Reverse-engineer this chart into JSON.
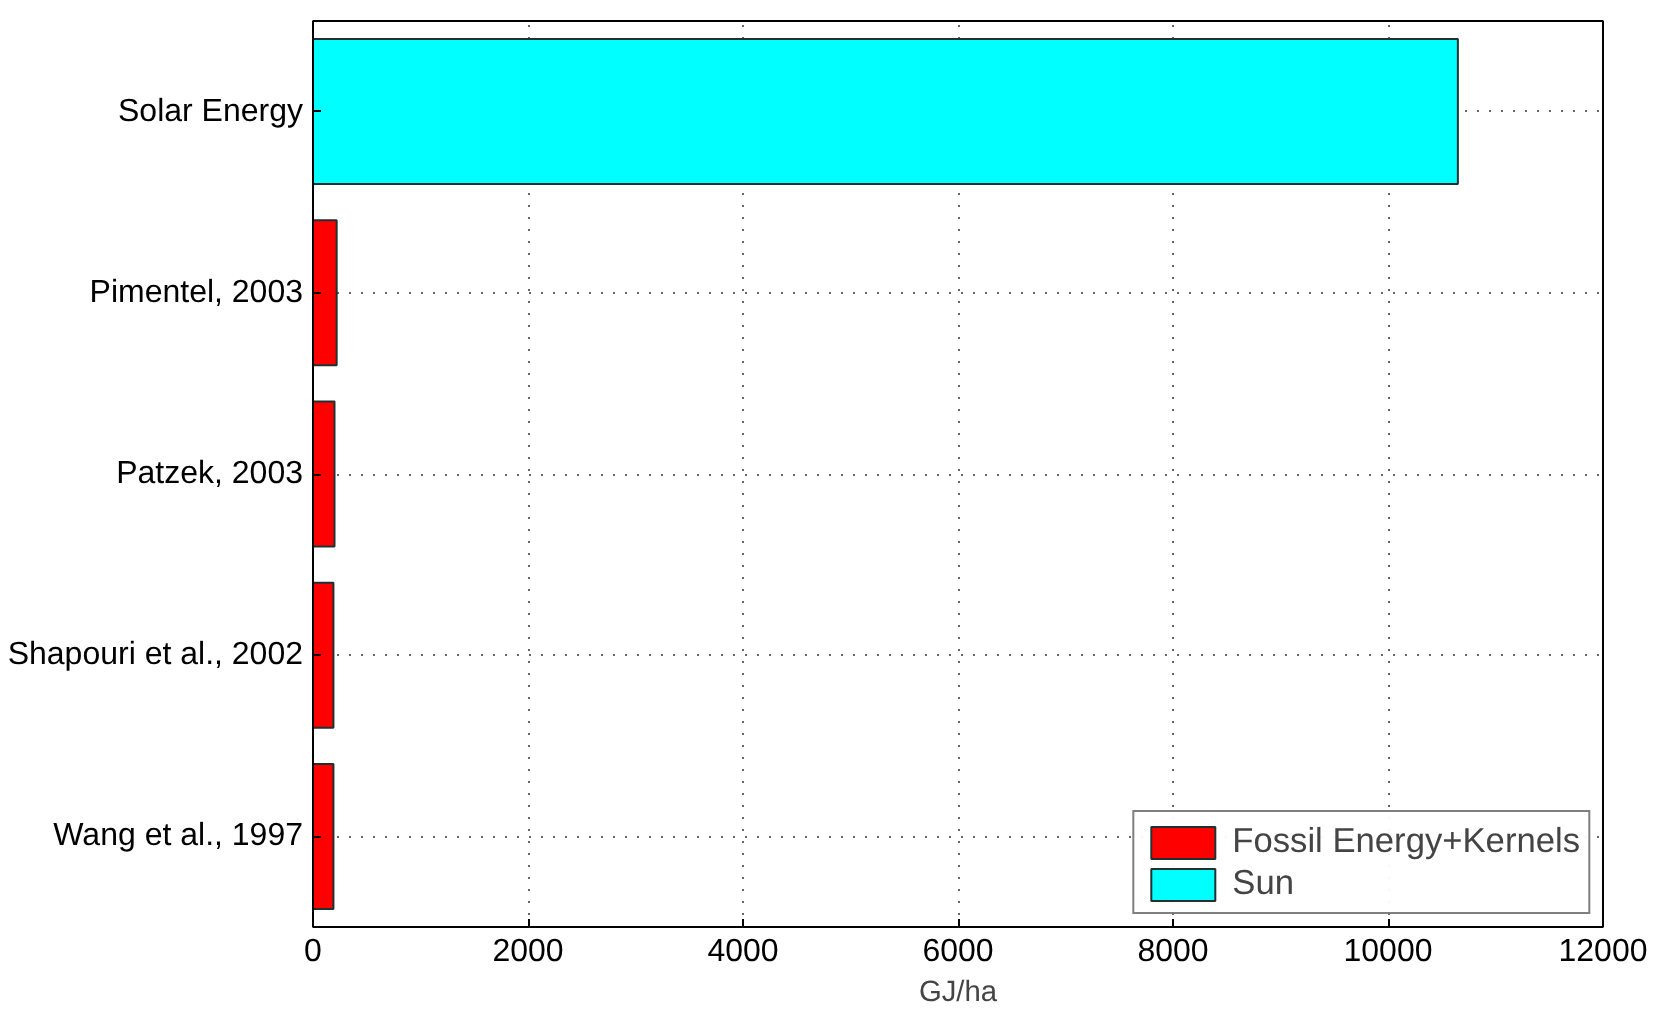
{
  "chart_data": {
    "type": "bar",
    "orientation": "horizontal",
    "xlabel": "GJ/ha",
    "categories": [
      "Solar Energy",
      "Pimentel, 2003",
      "Patzek, 2003",
      "Shapouri et al., 2002",
      "Wang et al., 1997"
    ],
    "series": [
      {
        "name": "Fossil Energy+Kernels",
        "color": "#ff0000",
        "values": [
          null,
          220,
          200,
          190,
          190
        ]
      },
      {
        "name": "Sun",
        "color": "#00ffff",
        "values": [
          10650,
          null,
          null,
          null,
          null
        ]
      }
    ],
    "xlim": [
      0,
      12000
    ],
    "xticks": [
      0,
      2000,
      4000,
      6000,
      8000,
      10000,
      12000
    ],
    "grid": true,
    "legend": "bottom right"
  }
}
